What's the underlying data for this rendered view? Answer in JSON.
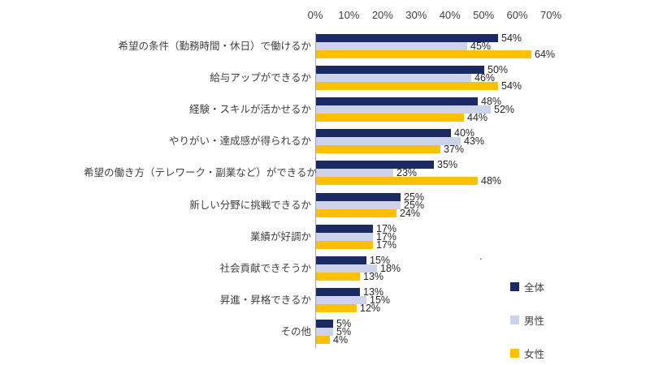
{
  "chart_data": {
    "type": "bar",
    "orientation": "horizontal",
    "title": "",
    "xlabel": "",
    "ylabel": "",
    "xlim": [
      0,
      70
    ],
    "x_ticks": [
      "0%",
      "10%",
      "20%",
      "30%",
      "40%",
      "50%",
      "60%",
      "70%"
    ],
    "grid": false,
    "legend_position": "bottom-right",
    "value_suffix": "%",
    "categories": [
      "希望の条件（勤務時間・休日）で働けるか",
      "給与アップができるか",
      "経験・スキルが活かせるか",
      "やりがい・達成感が得られるか",
      "希望の働き方（テレワーク・副業など）ができるか",
      "新しい分野に挑戦できるか",
      "業績が好調か",
      "社会貢献できそうか",
      "昇進・昇格できるか",
      "その他"
    ],
    "series": [
      {
        "name": "全体",
        "color": "#1b2a63",
        "values": [
          54,
          50,
          48,
          40,
          35,
          25,
          17,
          15,
          13,
          5
        ]
      },
      {
        "name": "男性",
        "color": "#cdd3ea",
        "values": [
          45,
          46,
          52,
          43,
          23,
          25,
          17,
          18,
          15,
          5
        ]
      },
      {
        "name": "女性",
        "color": "#ffc000",
        "values": [
          64,
          54,
          44,
          37,
          48,
          24,
          17,
          13,
          12,
          4
        ]
      }
    ]
  },
  "misc": {
    "stray_dot": "."
  }
}
